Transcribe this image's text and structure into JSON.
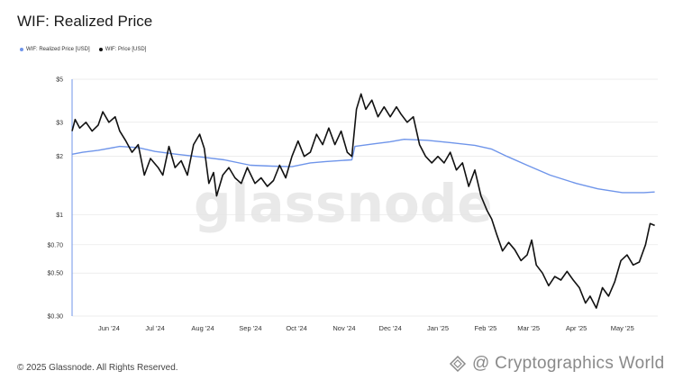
{
  "header": {
    "title": "WIF: Realized Price"
  },
  "footer": {
    "copyright": "© 2025 Glassnode. All Rights Reserved."
  },
  "watermarks": {
    "background": "glassnode",
    "corner": "@ Cryptographics World"
  },
  "colors": {
    "realized": "#6f95ea",
    "price": "#111111",
    "grid": "#e6e6e6"
  },
  "chart_data": {
    "type": "line",
    "title": "WIF: Realized Price",
    "y_scale": "log",
    "ylim": [
      0.3,
      5
    ],
    "y_ticks": [
      {
        "value": 5,
        "label": "$5"
      },
      {
        "value": 3,
        "label": "$3"
      },
      {
        "value": 2,
        "label": "$2"
      },
      {
        "value": 1,
        "label": "$1"
      },
      {
        "value": 0.7,
        "label": "$0.70"
      },
      {
        "value": 0.5,
        "label": "$0.50"
      },
      {
        "value": 0.3,
        "label": "$0.30"
      }
    ],
    "xlim": [
      "2024-05-08",
      "2025-05-24"
    ],
    "x_ticks": [
      {
        "date": "2024-06-01",
        "label": "Jun '24"
      },
      {
        "date": "2024-07-01",
        "label": "Jul '24"
      },
      {
        "date": "2024-08-01",
        "label": "Aug '24"
      },
      {
        "date": "2024-09-01",
        "label": "Sep '24"
      },
      {
        "date": "2024-10-01",
        "label": "Oct '24"
      },
      {
        "date": "2024-11-01",
        "label": "Nov '24"
      },
      {
        "date": "2024-12-01",
        "label": "Dec '24"
      },
      {
        "date": "2025-01-01",
        "label": "Jan '25"
      },
      {
        "date": "2025-02-01",
        "label": "Feb '25"
      },
      {
        "date": "2025-03-01",
        "label": "Mar '25"
      },
      {
        "date": "2025-04-01",
        "label": "Apr '25"
      },
      {
        "date": "2025-05-01",
        "label": "May '25"
      }
    ],
    "legend_position": "top-left",
    "grid": true,
    "series": [
      {
        "name": "WIF: Realized Price [USD]",
        "color": "#6f95ea",
        "points": [
          [
            "2024-05-08",
            2.05
          ],
          [
            "2024-05-15",
            2.1
          ],
          [
            "2024-05-25",
            2.15
          ],
          [
            "2024-06-08",
            2.25
          ],
          [
            "2024-06-20",
            2.22
          ],
          [
            "2024-07-01",
            2.12
          ],
          [
            "2024-07-15",
            2.05
          ],
          [
            "2024-08-01",
            1.98
          ],
          [
            "2024-08-15",
            1.92
          ],
          [
            "2024-09-01",
            1.8
          ],
          [
            "2024-09-15",
            1.78
          ],
          [
            "2024-09-28",
            1.77
          ],
          [
            "2024-10-10",
            1.85
          ],
          [
            "2024-10-20",
            1.88
          ],
          [
            "2024-11-06",
            1.92
          ],
          [
            "2024-11-08",
            2.25
          ],
          [
            "2024-11-20",
            2.32
          ],
          [
            "2024-12-01",
            2.38
          ],
          [
            "2024-12-10",
            2.45
          ],
          [
            "2024-12-25",
            2.42
          ],
          [
            "2025-01-10",
            2.35
          ],
          [
            "2025-01-25",
            2.28
          ],
          [
            "2025-02-05",
            2.18
          ],
          [
            "2025-02-15",
            2.0
          ],
          [
            "2025-02-28",
            1.8
          ],
          [
            "2025-03-15",
            1.6
          ],
          [
            "2025-04-01",
            1.45
          ],
          [
            "2025-04-15",
            1.36
          ],
          [
            "2025-05-01",
            1.3
          ],
          [
            "2025-05-15",
            1.3
          ],
          [
            "2025-05-22",
            1.31
          ]
        ]
      },
      {
        "name": "WIF: Price [USD]",
        "color": "#111111",
        "points": [
          [
            "2024-05-08",
            2.7
          ],
          [
            "2024-05-10",
            3.1
          ],
          [
            "2024-05-13",
            2.8
          ],
          [
            "2024-05-17",
            3.0
          ],
          [
            "2024-05-21",
            2.7
          ],
          [
            "2024-05-25",
            2.9
          ],
          [
            "2024-05-28",
            3.4
          ],
          [
            "2024-06-01",
            3.0
          ],
          [
            "2024-06-05",
            3.2
          ],
          [
            "2024-06-08",
            2.7
          ],
          [
            "2024-06-12",
            2.4
          ],
          [
            "2024-06-16",
            2.1
          ],
          [
            "2024-06-20",
            2.3
          ],
          [
            "2024-06-24",
            1.6
          ],
          [
            "2024-06-28",
            1.95
          ],
          [
            "2024-07-03",
            1.75
          ],
          [
            "2024-07-06",
            1.6
          ],
          [
            "2024-07-10",
            2.25
          ],
          [
            "2024-07-14",
            1.75
          ],
          [
            "2024-07-18",
            1.9
          ],
          [
            "2024-07-22",
            1.6
          ],
          [
            "2024-07-26",
            2.3
          ],
          [
            "2024-07-30",
            2.6
          ],
          [
            "2024-08-02",
            2.2
          ],
          [
            "2024-08-05",
            1.45
          ],
          [
            "2024-08-08",
            1.65
          ],
          [
            "2024-08-10",
            1.25
          ],
          [
            "2024-08-14",
            1.6
          ],
          [
            "2024-08-18",
            1.75
          ],
          [
            "2024-08-22",
            1.55
          ],
          [
            "2024-08-26",
            1.45
          ],
          [
            "2024-08-30",
            1.75
          ],
          [
            "2024-09-04",
            1.45
          ],
          [
            "2024-09-08",
            1.55
          ],
          [
            "2024-09-12",
            1.4
          ],
          [
            "2024-09-16",
            1.5
          ],
          [
            "2024-09-20",
            1.8
          ],
          [
            "2024-09-24",
            1.55
          ],
          [
            "2024-09-28",
            2.0
          ],
          [
            "2024-10-02",
            2.4
          ],
          [
            "2024-10-06",
            2.0
          ],
          [
            "2024-10-10",
            2.1
          ],
          [
            "2024-10-14",
            2.6
          ],
          [
            "2024-10-18",
            2.3
          ],
          [
            "2024-10-22",
            2.8
          ],
          [
            "2024-10-26",
            2.3
          ],
          [
            "2024-10-30",
            2.7
          ],
          [
            "2024-11-03",
            2.1
          ],
          [
            "2024-11-06",
            2.0
          ],
          [
            "2024-11-09",
            3.5
          ],
          [
            "2024-11-12",
            4.2
          ],
          [
            "2024-11-15",
            3.5
          ],
          [
            "2024-11-19",
            3.9
          ],
          [
            "2024-11-23",
            3.2
          ],
          [
            "2024-11-27",
            3.6
          ],
          [
            "2024-12-01",
            3.2
          ],
          [
            "2024-12-05",
            3.6
          ],
          [
            "2024-12-08",
            3.3
          ],
          [
            "2024-12-12",
            3.0
          ],
          [
            "2024-12-16",
            3.2
          ],
          [
            "2024-12-20",
            2.3
          ],
          [
            "2024-12-24",
            2.0
          ],
          [
            "2024-12-28",
            1.85
          ],
          [
            "2025-01-01",
            2.0
          ],
          [
            "2025-01-05",
            1.85
          ],
          [
            "2025-01-09",
            2.1
          ],
          [
            "2025-01-13",
            1.7
          ],
          [
            "2025-01-17",
            1.85
          ],
          [
            "2025-01-21",
            1.4
          ],
          [
            "2025-01-25",
            1.7
          ],
          [
            "2025-01-29",
            1.25
          ],
          [
            "2025-02-02",
            1.05
          ],
          [
            "2025-02-05",
            0.95
          ],
          [
            "2025-02-08",
            0.8
          ],
          [
            "2025-02-12",
            0.65
          ],
          [
            "2025-02-16",
            0.72
          ],
          [
            "2025-02-20",
            0.66
          ],
          [
            "2025-02-24",
            0.58
          ],
          [
            "2025-02-28",
            0.62
          ],
          [
            "2025-03-03",
            0.74
          ],
          [
            "2025-03-06",
            0.55
          ],
          [
            "2025-03-10",
            0.5
          ],
          [
            "2025-03-14",
            0.43
          ],
          [
            "2025-03-18",
            0.48
          ],
          [
            "2025-03-22",
            0.46
          ],
          [
            "2025-03-26",
            0.51
          ],
          [
            "2025-03-30",
            0.46
          ],
          [
            "2025-04-03",
            0.42
          ],
          [
            "2025-04-07",
            0.35
          ],
          [
            "2025-04-10",
            0.38
          ],
          [
            "2025-04-14",
            0.33
          ],
          [
            "2025-04-18",
            0.42
          ],
          [
            "2025-04-22",
            0.38
          ],
          [
            "2025-04-26",
            0.45
          ],
          [
            "2025-04-30",
            0.58
          ],
          [
            "2025-05-04",
            0.62
          ],
          [
            "2025-05-08",
            0.55
          ],
          [
            "2025-05-12",
            0.57
          ],
          [
            "2025-05-16",
            0.7
          ],
          [
            "2025-05-19",
            0.9
          ],
          [
            "2025-05-22",
            0.88
          ]
        ]
      }
    ]
  }
}
